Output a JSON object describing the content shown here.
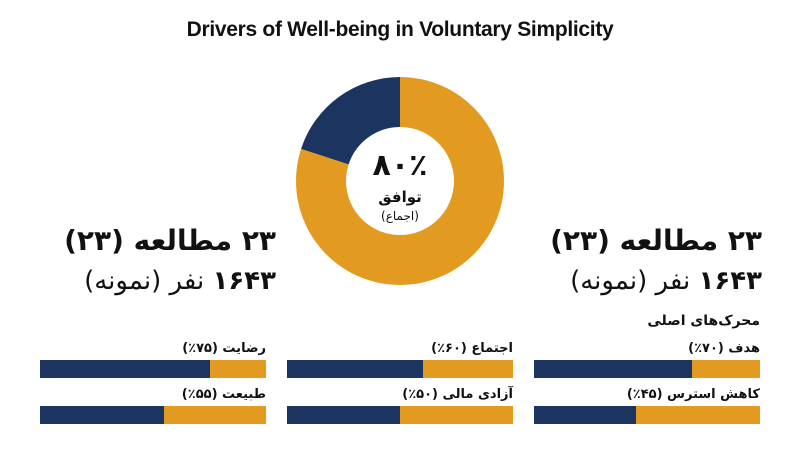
{
  "title": "Drivers of Well-being in Voluntary Simplicity",
  "colors": {
    "navy": "#1c3460",
    "gold": "#e29a21"
  },
  "donut": {
    "percent_label": "۸۰٪",
    "label": "توافق",
    "sublabel": "(اجماع)"
  },
  "left_stats": {
    "studies": "۲۳ مطالعه (۲۳)",
    "sample_number": "۱۶۴۳",
    "sample_rest": "نفر (نمونه)"
  },
  "right_stats": {
    "studies": "۲۳ مطالعه (۲۳)",
    "sample_number": "۱۶۴۳",
    "sample_rest": "نفر (نمونه)"
  },
  "drivers_title": "محرک‌های اصلی",
  "chart_data": [
    {
      "type": "pie",
      "categories": [
        "توافق",
        ""
      ],
      "values": [
        80,
        20
      ]
    },
    {
      "type": "bar",
      "categories": [
        "هدف (۷۰٪)",
        "کاهش استرس (۴۵٪)",
        "اجتماع (۶۰٪)",
        "آزادی مالی (۵۰٪)",
        "رضایت (۷۵٪)",
        "طبیعت (۵۵٪)"
      ],
      "values": [
        70,
        45,
        60,
        50,
        75,
        55
      ],
      "ylim": [
        0,
        100
      ]
    }
  ]
}
